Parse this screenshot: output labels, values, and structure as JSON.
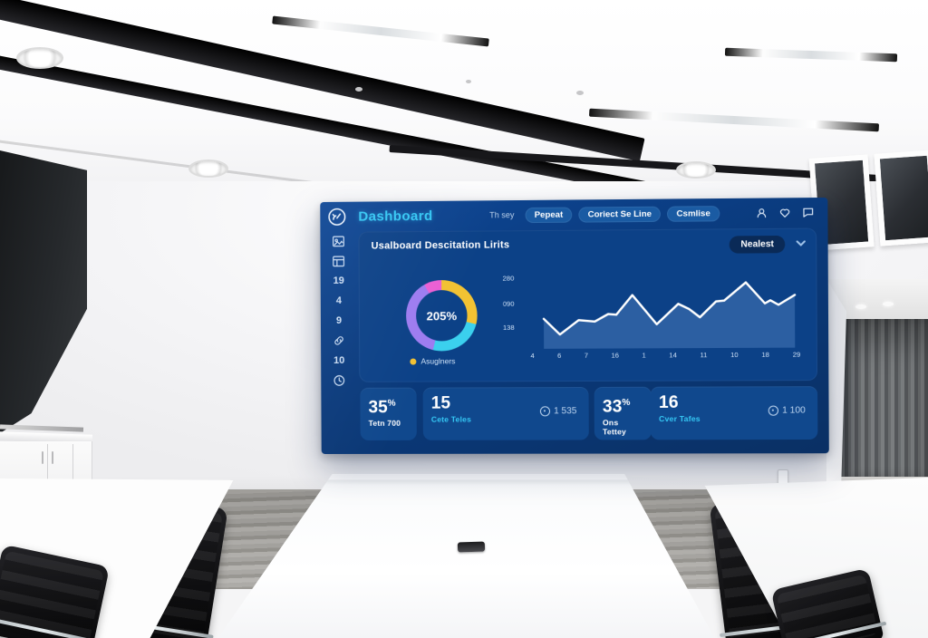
{
  "screen": {
    "header": {
      "logo_icon": "gauge-logo-icon",
      "title": "Dashboard",
      "nav_text": "Th sey",
      "buttons": [
        "Pepeat",
        "Coriect Se Line",
        "Csmlise"
      ],
      "icon_names": [
        "user-icon",
        "heart-icon",
        "chat-icon"
      ]
    },
    "sidebar": {
      "numbers": [
        "19",
        "4",
        "9",
        "10"
      ],
      "icon_names": [
        "photo-icon",
        "slides-icon",
        "link-icon",
        "clock-icon"
      ]
    },
    "panel": {
      "title": "Usalboard Descitation Lirits",
      "dropdown_label": "Nealest",
      "legend_label": "Asuglners"
    },
    "stats": [
      {
        "value": "35",
        "suffix": "%",
        "label": "Tetn 700",
        "extra": ""
      },
      {
        "value": "15",
        "suffix": "",
        "label": "Cete Teles",
        "extra": "1 535"
      },
      {
        "value": "33",
        "suffix": "%",
        "label": "Ons Tettey",
        "extra": ""
      },
      {
        "value": "16",
        "suffix": "",
        "label": "Cver Tafes",
        "extra": "1 100"
      }
    ],
    "colors": {
      "accent_cyan": "#35c8f5",
      "screen_bg": "#0a3a7c",
      "panel_bg": "#0c4187",
      "card_bg": "#10488d",
      "pill_bg": "#1a5ba3",
      "dropdown_bg": "#0a2a57"
    }
  },
  "chart_data": [
    {
      "type": "pie",
      "title": "usage-donut",
      "center_label": "205%",
      "legend": [
        "Asuglners"
      ],
      "legend_position": "bottom",
      "segments": [
        {
          "name": "yellow",
          "value": 29,
          "color": "#f2c233"
        },
        {
          "name": "cyan",
          "value": 25,
          "color": "#3bd0ee"
        },
        {
          "name": "purple",
          "value": 38,
          "color": "#9d7cf0"
        },
        {
          "name": "pink",
          "value": 8,
          "color": "#ea5fd4"
        }
      ]
    },
    {
      "type": "line",
      "title": "trend-line",
      "y_ticks": [
        "280",
        "090",
        "138"
      ],
      "x_ticks": [
        "4",
        "6",
        "7",
        "16",
        "1",
        "14",
        "11",
        "10",
        "18",
        "29"
      ],
      "ylim": [
        0,
        300
      ],
      "grid": false,
      "line_color": "#ffffff",
      "area_color": "rgba(130,175,235,0.28)",
      "values_estimated": [
        140,
        70,
        135,
        130,
        160,
        158,
        215,
        105,
        180,
        160,
        130,
        190,
        192,
        265,
        180,
        192,
        172,
        212
      ],
      "points": [
        [
          5,
          60
        ],
        [
          11,
          81
        ],
        [
          18,
          62
        ],
        [
          24,
          64
        ],
        [
          29,
          54
        ],
        [
          32,
          55
        ],
        [
          38,
          29
        ],
        [
          47,
          68
        ],
        [
          55,
          41
        ],
        [
          59,
          48
        ],
        [
          63,
          59
        ],
        [
          69,
          38
        ],
        [
          72,
          37
        ],
        [
          80,
          13
        ],
        [
          87,
          41
        ],
        [
          89,
          37
        ],
        [
          92,
          43
        ],
        [
          98,
          30
        ]
      ]
    }
  ]
}
